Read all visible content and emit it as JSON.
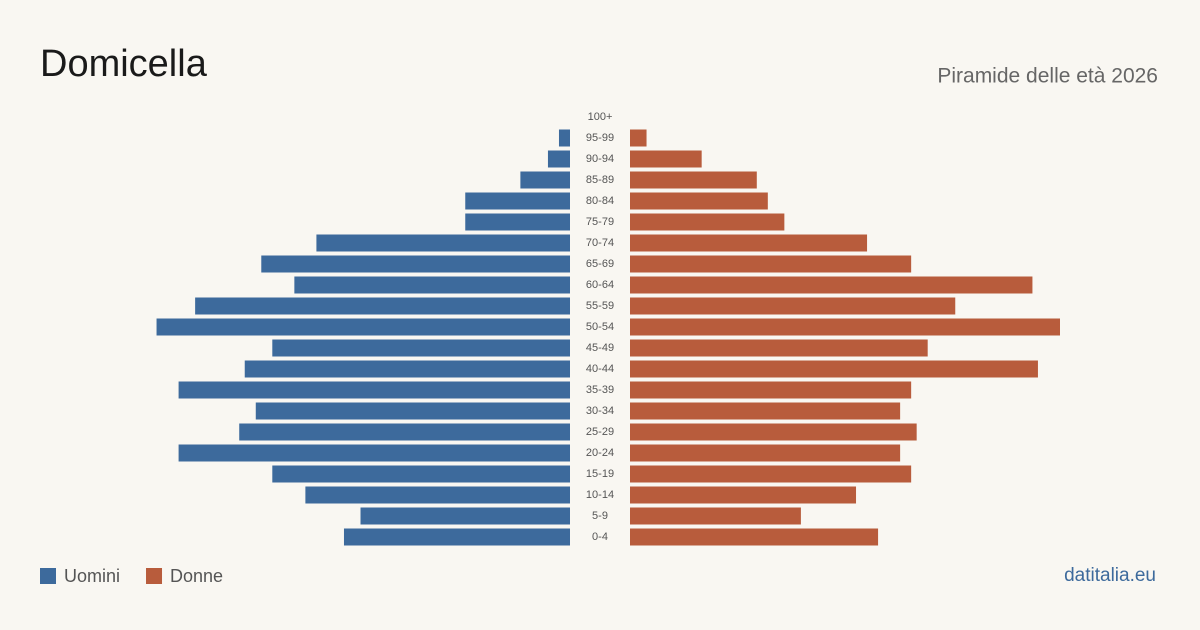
{
  "chart_data": {
    "type": "pyramid",
    "title": "Domicella",
    "subtitle": "Piramide delle età 2026",
    "source": "datitalia.eu",
    "categories": [
      "100+",
      "95-99",
      "90-94",
      "85-89",
      "80-84",
      "75-79",
      "70-74",
      "65-69",
      "60-64",
      "55-59",
      "50-54",
      "45-49",
      "40-44",
      "35-39",
      "30-34",
      "25-29",
      "20-24",
      "15-19",
      "10-14",
      "5-9",
      "0-4"
    ],
    "series": [
      {
        "name": "Uomini",
        "color": "#3d6a9c",
        "values": [
          0,
          2,
          4,
          9,
          19,
          19,
          46,
          56,
          50,
          68,
          75,
          54,
          59,
          71,
          57,
          60,
          71,
          54,
          48,
          38,
          41
        ]
      },
      {
        "name": "Donne",
        "color": "#b85c3c",
        "values": [
          0,
          3,
          13,
          23,
          25,
          28,
          43,
          51,
          73,
          59,
          78,
          54,
          74,
          51,
          49,
          52,
          49,
          51,
          41,
          31,
          45
        ]
      }
    ]
  }
}
